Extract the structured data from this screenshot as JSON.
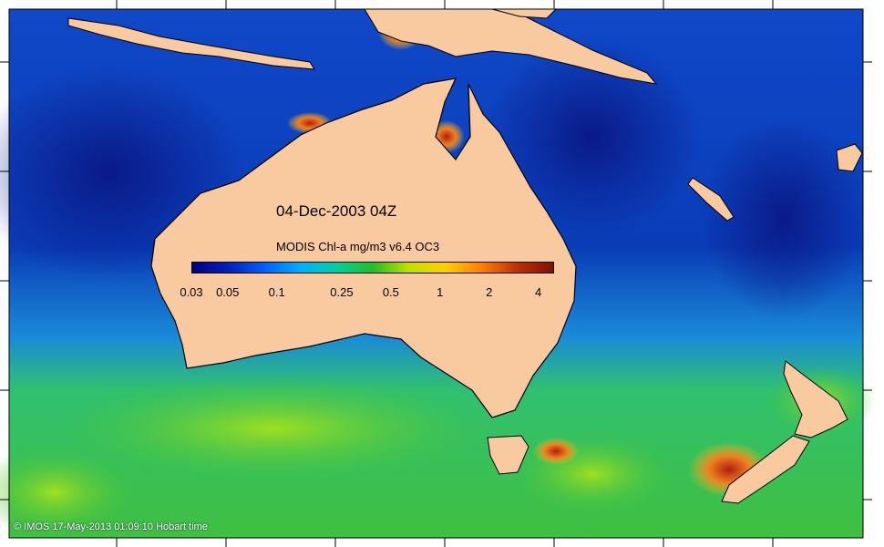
{
  "map": {
    "date_label": "04-Dec-2003 04Z",
    "credit": "© IMOS 17-May-2013 01:09:10 Hobart time"
  },
  "colorbar": {
    "title": "MODIS Chl-a mg/m3 v6.4 OC3",
    "ticks": [
      "0.03",
      "0.05",
      "0.1",
      "0.25",
      "0.5",
      "1",
      "2",
      "4"
    ],
    "tick_values": [
      0.03,
      0.05,
      0.1,
      0.25,
      0.5,
      1,
      2,
      4
    ],
    "range": [
      0.03,
      5
    ],
    "scale": "log",
    "colors": [
      "#000080",
      "#0020c0",
      "#0060ff",
      "#00b0ff",
      "#00d0a0",
      "#20c020",
      "#c0e000",
      "#ffd000",
      "#ff8000",
      "#c03000",
      "#801000"
    ]
  },
  "palette": {
    "land": "#f9c9a0",
    "deep_ocean": "#0a2a9a",
    "open_ocean": "#1050d0",
    "southern_ocean": "#20b050",
    "high_chl": "#c03010"
  }
}
